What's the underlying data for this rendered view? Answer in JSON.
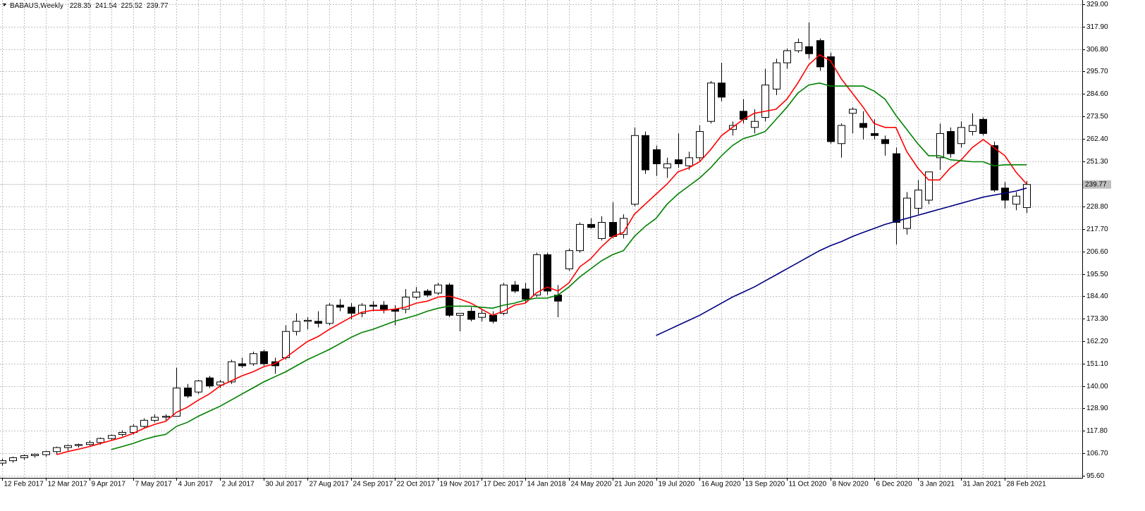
{
  "chart_data": {
    "type": "candlestick",
    "title": "BABAUS,Weekly",
    "categories": [
      "12 Feb 2017",
      null,
      null,
      null,
      "12 Mar 2017",
      null,
      null,
      null,
      "9 Apr 2017",
      null,
      null,
      null,
      "7 May 2017",
      null,
      null,
      null,
      "4 Jun 2017",
      null,
      null,
      null,
      "2 Jul 2017",
      null,
      null,
      null,
      "30 Jul 2017",
      null,
      null,
      null,
      "27 Aug 2017",
      null,
      null,
      null,
      "24 Sep 2017",
      null,
      null,
      null,
      "22 Oct 2017",
      null,
      null,
      null,
      "19 Nov 2017",
      null,
      null,
      null,
      "17 Dec 2017",
      null,
      null,
      null,
      "14 Jan 2018",
      null,
      null,
      null,
      "24 May 2020",
      null,
      null,
      null,
      "21 Jun 2020",
      null,
      null,
      null,
      "19 Jul 2020",
      null,
      null,
      null,
      "16 Aug 2020",
      null,
      null,
      null,
      "13 Sep 2020",
      null,
      null,
      null,
      "11 Oct 2020",
      null,
      null,
      null,
      "8 Nov 2020",
      null,
      null,
      null,
      "6 Dec 2020",
      null,
      null,
      null,
      "3 Jan 2021",
      null,
      null,
      null,
      "31 Jan 2021",
      null,
      null,
      null,
      "28 Feb 2021",
      null,
      null
    ],
    "open": [
      101.8,
      103,
      104.5,
      105.5,
      106,
      107.5,
      109.5,
      110.5,
      111,
      112,
      114,
      116,
      117,
      120,
      123,
      124.5,
      125,
      139,
      137,
      144,
      140.5,
      142,
      151,
      151,
      157,
      152,
      154,
      167,
      172,
      172,
      171,
      180,
      179,
      176,
      180,
      180,
      178,
      178,
      184,
      187,
      186,
      190,
      175,
      177,
      174,
      175,
      176,
      190,
      188,
      185,
      205,
      185,
      198,
      207,
      220,
      213,
      221,
      215,
      230,
      264,
      257,
      248,
      252,
      249,
      253,
      271,
      290,
      267,
      276,
      268,
      273,
      287,
      300,
      306,
      308,
      311,
      303,
      260,
      275,
      270,
      265,
      262,
      255,
      218,
      228,
      232,
      253,
      266,
      260,
      266,
      272,
      259,
      238,
      230,
      228.35
    ],
    "high": [
      104,
      105,
      106,
      106.5,
      108,
      110,
      111,
      111.5,
      113,
      114.5,
      116,
      118,
      121,
      124,
      126,
      126,
      149,
      141,
      143,
      145,
      143,
      153,
      154,
      157,
      158,
      154,
      170,
      176,
      174,
      177,
      181,
      183,
      181,
      181,
      182,
      182,
      180,
      188,
      189,
      188,
      191,
      191,
      176,
      179,
      178,
      177,
      191,
      192,
      191,
      206,
      206,
      190,
      208,
      221,
      223,
      224,
      231,
      225,
      268,
      266,
      259,
      253,
      265,
      256,
      269,
      291,
      300,
      271,
      282,
      277,
      297,
      302,
      307,
      312,
      320,
      312,
      305,
      270,
      278,
      276,
      272,
      264,
      258,
      236,
      242,
      246,
      270,
      268,
      271,
      275,
      273,
      261,
      241,
      236,
      241.54
    ],
    "low": [
      100.5,
      102,
      103.5,
      104.5,
      105,
      106,
      108,
      109.5,
      110.5,
      111,
      113,
      115,
      116,
      119,
      122,
      123,
      125,
      134,
      136,
      139,
      139,
      141,
      149,
      150,
      150,
      146,
      153,
      165,
      168,
      169,
      170,
      177,
      173,
      174,
      177,
      176,
      170,
      176,
      183,
      184,
      185,
      174,
      167,
      172,
      172,
      171,
      175,
      186,
      181,
      184,
      185,
      174,
      197,
      206,
      218,
      212,
      213,
      213,
      229,
      245,
      244,
      243,
      248,
      247,
      251,
      270,
      281,
      264,
      270,
      265,
      271,
      284,
      297,
      305,
      302,
      296,
      260,
      253,
      265,
      262,
      262,
      254,
      210,
      215,
      225,
      230,
      247,
      253,
      258,
      264,
      264,
      236,
      228,
      227,
      225.52
    ],
    "close": [
      103,
      104.5,
      105.5,
      106.2,
      107.5,
      109.5,
      110.5,
      111,
      112,
      114,
      115.5,
      117,
      120,
      123,
      124.5,
      125,
      139,
      135,
      142.5,
      140,
      142,
      152,
      150,
      156,
      151,
      150,
      167,
      172,
      172.5,
      171,
      180,
      179,
      176,
      180,
      179.5,
      178,
      177,
      184,
      186.5,
      185,
      190,
      175,
      176,
      173,
      176,
      172,
      190,
      187,
      183,
      205,
      187,
      182,
      207,
      220,
      218.5,
      221,
      214,
      223,
      264,
      247,
      250,
      250,
      250,
      253,
      266,
      290,
      283,
      269,
      272,
      271,
      289,
      300,
      306,
      310,
      304.5,
      298,
      261,
      269,
      277,
      268,
      264,
      260,
      221,
      233,
      237,
      246,
      265,
      255,
      268,
      269,
      265,
      237,
      232,
      234,
      239.77
    ],
    "bull_color": "#ffffff",
    "bear_color": "#000000",
    "series": [
      {
        "color": "#ff0000",
        "values": [
          null,
          null,
          null,
          null,
          null,
          106,
          107.5,
          108.7,
          110,
          111.5,
          113,
          114.5,
          116.5,
          119,
          121,
          122.5,
          127,
          129.5,
          133,
          136,
          140,
          142.5,
          145,
          147,
          149.5,
          151,
          154,
          158,
          162,
          164.5,
          168,
          171,
          174,
          176.5,
          177.5,
          177.5,
          178,
          179,
          181,
          182,
          184,
          184.5,
          183,
          181,
          178,
          175,
          177,
          180,
          181,
          186,
          189,
          187,
          191,
          199,
          203,
          209,
          214,
          216,
          225,
          230,
          235,
          240,
          246,
          248,
          251,
          257,
          264,
          268,
          272,
          275,
          276,
          277,
          282,
          290,
          299,
          304,
          301,
          292,
          285,
          278,
          270,
          268,
          268,
          256,
          248,
          242,
          242,
          248,
          252,
          258,
          262,
          258,
          254,
          246,
          240
        ]
      },
      {
        "color": "#008000",
        "values": [
          null,
          null,
          null,
          null,
          null,
          null,
          null,
          null,
          null,
          null,
          108.5,
          110,
          111.5,
          113.5,
          115,
          116,
          120,
          122,
          125,
          127.5,
          130,
          133,
          136,
          139,
          142,
          144.5,
          147,
          150,
          153,
          155.5,
          158,
          161,
          164,
          166.5,
          168,
          170,
          172,
          173.5,
          175,
          177,
          178.5,
          179.5,
          179.5,
          179.5,
          179,
          178.5,
          180,
          181,
          182.5,
          183.5,
          183.5,
          185,
          189,
          194,
          198,
          202,
          205,
          207,
          214,
          219,
          223,
          230,
          235,
          239,
          243,
          248,
          254,
          259,
          262.5,
          264,
          266,
          272,
          278,
          285,
          289,
          290,
          288.5,
          288.5,
          288.5,
          288.5,
          286,
          282,
          274,
          267,
          260,
          254,
          254,
          252,
          251.5,
          251,
          251,
          249,
          249.5,
          249.5,
          249.5
        ]
      },
      {
        "color": "#000080",
        "values": [
          null,
          null,
          null,
          null,
          null,
          null,
          null,
          null,
          null,
          null,
          null,
          null,
          null,
          null,
          null,
          null,
          null,
          null,
          null,
          null,
          null,
          null,
          null,
          null,
          null,
          null,
          null,
          null,
          null,
          null,
          null,
          null,
          null,
          null,
          null,
          null,
          null,
          null,
          null,
          null,
          null,
          null,
          null,
          null,
          null,
          null,
          null,
          null,
          null,
          null,
          null,
          null,
          null,
          null,
          null,
          null,
          null,
          null,
          null,
          null,
          165,
          167.5,
          170,
          172.5,
          175,
          178,
          181,
          184,
          186.5,
          189,
          192,
          195,
          198,
          201,
          204,
          207,
          209.5,
          211.5,
          214,
          216,
          218,
          220,
          221.5,
          223,
          224.5,
          226,
          227.5,
          229,
          230.5,
          232,
          233.5,
          234.5,
          235.5,
          236.5,
          238
        ]
      }
    ],
    "ylim": [
      94.5,
      331.1
    ],
    "yticks": [
      {
        "value": 329,
        "label": "329.00"
      },
      {
        "value": 317.9,
        "label": "317.90"
      },
      {
        "value": 306.8,
        "label": "306.80"
      },
      {
        "value": 295.7,
        "label": "295.70"
      },
      {
        "value": 284.6,
        "label": "284.60"
      },
      {
        "value": 273.5,
        "label": "273.50"
      },
      {
        "value": 262.4,
        "label": "262.40"
      },
      {
        "value": 251.3,
        "label": "251.30"
      },
      {
        "value": 228.8,
        "label": "228.80"
      },
      {
        "value": 217.7,
        "label": "217.70"
      },
      {
        "value": 206.6,
        "label": "206.60"
      },
      {
        "value": 195.5,
        "label": "195.50"
      },
      {
        "value": 184.4,
        "label": "184.40"
      },
      {
        "value": 173.3,
        "label": "173.30"
      },
      {
        "value": 162.2,
        "label": "162.20"
      },
      {
        "value": 151.1,
        "label": "151.10"
      },
      {
        "value": 140,
        "label": "140.00"
      },
      {
        "value": 128.9,
        "label": "128.90"
      },
      {
        "value": 117.8,
        "label": "117.80"
      },
      {
        "value": 106.7,
        "label": "106.70"
      },
      {
        "value": 95.6,
        "label": "95.60"
      }
    ],
    "grid": true
  }
}
